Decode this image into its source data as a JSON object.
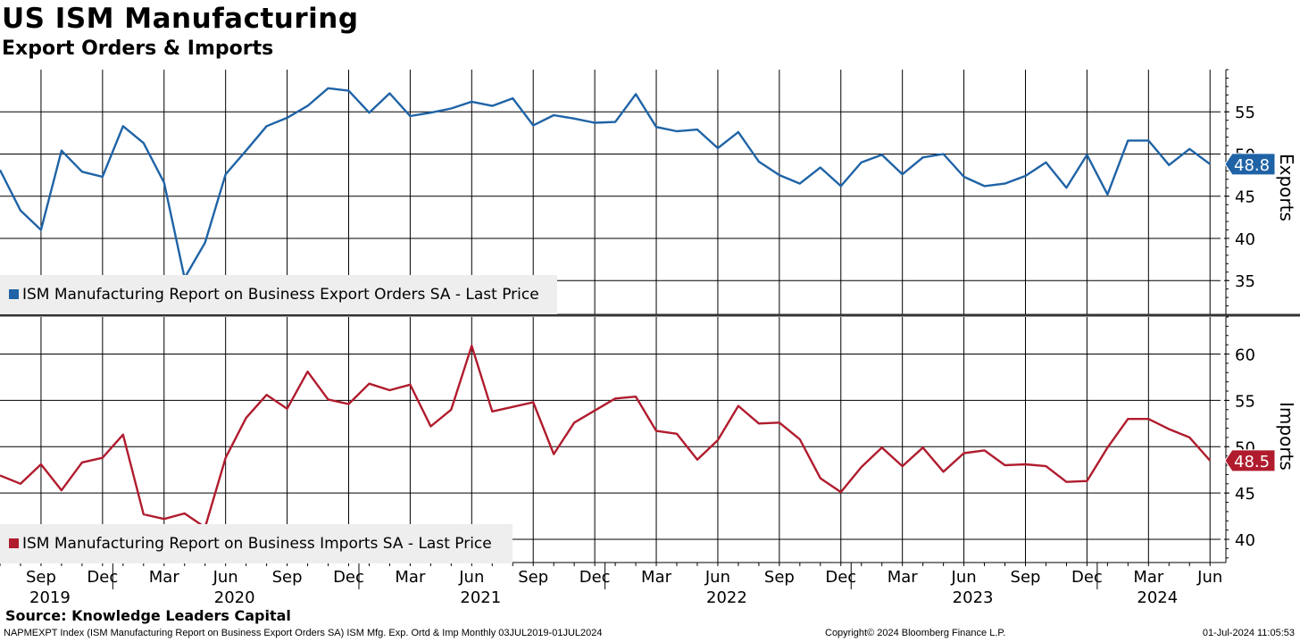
{
  "title": "US ISM Manufacturing",
  "subtitle": "Export Orders & Imports",
  "source": "Source: Knowledge Leaders Capital",
  "footer": {
    "left": "NAPMEXPT Index (ISM Manufacturing Report on Business Export Orders SA) ISM Mfg. Exp. Ortd & Imp  Monthly 03JUL2019-01JUL2024",
    "center": "Copyright© 2024 Bloomberg Finance L.P.",
    "right": "01-Jul-2024 11:05:53"
  },
  "colors": {
    "exports": "#1f63a6",
    "imports": "#b01c2e"
  },
  "chart_data": [
    {
      "type": "line",
      "name": "exports",
      "axis_title": "Exports",
      "legend": "ISM Manufacturing Report on Business Export Orders SA - Last Price",
      "last_value_label": "48.8",
      "ylim": [
        31,
        60
      ],
      "yticks": [
        35,
        40,
        45,
        50,
        55
      ],
      "x": [
        "Jul 2019",
        "Aug 2019",
        "Sep 2019",
        "Oct 2019",
        "Nov 2019",
        "Dec 2019",
        "Jan 2020",
        "Feb 2020",
        "Mar 2020",
        "Apr 2020",
        "May 2020",
        "Jun 2020",
        "Jul 2020",
        "Aug 2020",
        "Sep 2020",
        "Oct 2020",
        "Nov 2020",
        "Dec 2020",
        "Jan 2021",
        "Feb 2021",
        "Mar 2021",
        "Apr 2021",
        "May 2021",
        "Jun 2021",
        "Jul 2021",
        "Aug 2021",
        "Sep 2021",
        "Oct 2021",
        "Nov 2021",
        "Dec 2021",
        "Jan 2022",
        "Feb 2022",
        "Mar 2022",
        "Apr 2022",
        "May 2022",
        "Jun 2022",
        "Jul 2022",
        "Aug 2022",
        "Sep 2022",
        "Oct 2022",
        "Nov 2022",
        "Dec 2022",
        "Jan 2023",
        "Feb 2023",
        "Mar 2023",
        "Apr 2023",
        "May 2023",
        "Jun 2023",
        "Jul 2023",
        "Aug 2023",
        "Sep 2023",
        "Oct 2023",
        "Nov 2023",
        "Dec 2023",
        "Jan 2024",
        "Feb 2024",
        "Mar 2024",
        "Apr 2024",
        "May 2024",
        "Jun 2024"
      ],
      "values": [
        48.1,
        43.3,
        41.0,
        50.4,
        47.9,
        47.3,
        53.3,
        51.3,
        46.6,
        35.3,
        39.5,
        47.6,
        50.4,
        53.3,
        54.3,
        55.7,
        57.8,
        57.5,
        54.9,
        57.2,
        54.5,
        54.9,
        55.4,
        56.2,
        55.7,
        56.6,
        53.4,
        54.6,
        54.2,
        53.7,
        53.8,
        57.1,
        53.2,
        52.7,
        52.9,
        50.7,
        52.6,
        49.1,
        47.5,
        46.5,
        48.4,
        46.2,
        49.0,
        49.9,
        47.6,
        49.6,
        50.0,
        47.3,
        46.2,
        46.5,
        47.4,
        49.0,
        46.0,
        49.9,
        45.2,
        51.6,
        51.6,
        48.7,
        50.6,
        48.8
      ]
    },
    {
      "type": "line",
      "name": "imports",
      "axis_title": "Imports",
      "legend": "ISM Manufacturing Report on Business Imports SA - Last Price",
      "last_value_label": "48.5",
      "ylim": [
        37.5,
        64
      ],
      "yticks": [
        40,
        45,
        50,
        55,
        60
      ],
      "x": [
        "Jul 2019",
        "Aug 2019",
        "Sep 2019",
        "Oct 2019",
        "Nov 2019",
        "Dec 2019",
        "Jan 2020",
        "Feb 2020",
        "Mar 2020",
        "Apr 2020",
        "May 2020",
        "Jun 2020",
        "Jul 2020",
        "Aug 2020",
        "Sep 2020",
        "Oct 2020",
        "Nov 2020",
        "Dec 2020",
        "Jan 2021",
        "Feb 2021",
        "Mar 2021",
        "Apr 2021",
        "May 2021",
        "Jun 2021",
        "Jul 2021",
        "Aug 2021",
        "Sep 2021",
        "Oct 2021",
        "Nov 2021",
        "Dec 2021",
        "Jan 2022",
        "Feb 2022",
        "Mar 2022",
        "Apr 2022",
        "May 2022",
        "Jun 2022",
        "Jul 2022",
        "Aug 2022",
        "Sep 2022",
        "Oct 2022",
        "Nov 2022",
        "Dec 2022",
        "Jan 2023",
        "Feb 2023",
        "Mar 2023",
        "Apr 2023",
        "May 2023",
        "Jun 2023",
        "Jul 2023",
        "Aug 2023",
        "Sep 2023",
        "Oct 2023",
        "Nov 2023",
        "Dec 2023",
        "Jan 2024",
        "Feb 2024",
        "Mar 2024",
        "Apr 2024",
        "May 2024",
        "Jun 2024"
      ],
      "values": [
        46.9,
        46.0,
        48.1,
        45.3,
        48.3,
        48.8,
        51.3,
        42.7,
        42.2,
        42.8,
        41.3,
        48.8,
        53.1,
        55.6,
        54.1,
        58.1,
        55.1,
        54.6,
        56.8,
        56.1,
        56.7,
        52.2,
        54.0,
        60.9,
        53.8,
        54.3,
        54.8,
        49.2,
        52.6,
        53.9,
        55.2,
        55.4,
        51.7,
        51.4,
        48.6,
        50.7,
        54.4,
        52.5,
        52.6,
        50.8,
        46.6,
        45.1,
        47.8,
        49.9,
        47.9,
        49.9,
        47.3,
        49.3,
        49.6,
        48.0,
        48.1,
        47.9,
        46.2,
        46.3,
        49.9,
        53.0,
        53.0,
        51.9,
        51.0,
        48.5
      ]
    }
  ],
  "x_axis": {
    "month_labels": [
      {
        "label": "Sep",
        "month_index": 2
      },
      {
        "label": "Dec",
        "month_index": 5
      },
      {
        "label": "Mar",
        "month_index": 8
      },
      {
        "label": "Jun",
        "month_index": 11
      },
      {
        "label": "Sep",
        "month_index": 14
      },
      {
        "label": "Dec",
        "month_index": 17
      },
      {
        "label": "Mar",
        "month_index": 20
      },
      {
        "label": "Jun",
        "month_index": 23
      },
      {
        "label": "Sep",
        "month_index": 26
      },
      {
        "label": "Dec",
        "month_index": 29
      },
      {
        "label": "Mar",
        "month_index": 32
      },
      {
        "label": "Jun",
        "month_index": 35
      },
      {
        "label": "Sep",
        "month_index": 38
      },
      {
        "label": "Dec",
        "month_index": 41
      },
      {
        "label": "Mar",
        "month_index": 44
      },
      {
        "label": "Jun",
        "month_index": 47
      },
      {
        "label": "Sep",
        "month_index": 50
      },
      {
        "label": "Dec",
        "month_index": 53
      },
      {
        "label": "Mar",
        "month_index": 56
      },
      {
        "label": "Jun",
        "month_index": 59
      }
    ],
    "year_labels": [
      {
        "label": "2019",
        "month_index": 2
      },
      {
        "label": "2020",
        "month_index": 11
      },
      {
        "label": "2021",
        "month_index": 23
      },
      {
        "label": "2022",
        "month_index": 35
      },
      {
        "label": "2023",
        "month_index": 47
      },
      {
        "label": "2024",
        "month_index": 56
      }
    ],
    "year_boundaries": [
      5.5,
      17.5,
      29.5,
      41.5,
      53.5
    ]
  }
}
